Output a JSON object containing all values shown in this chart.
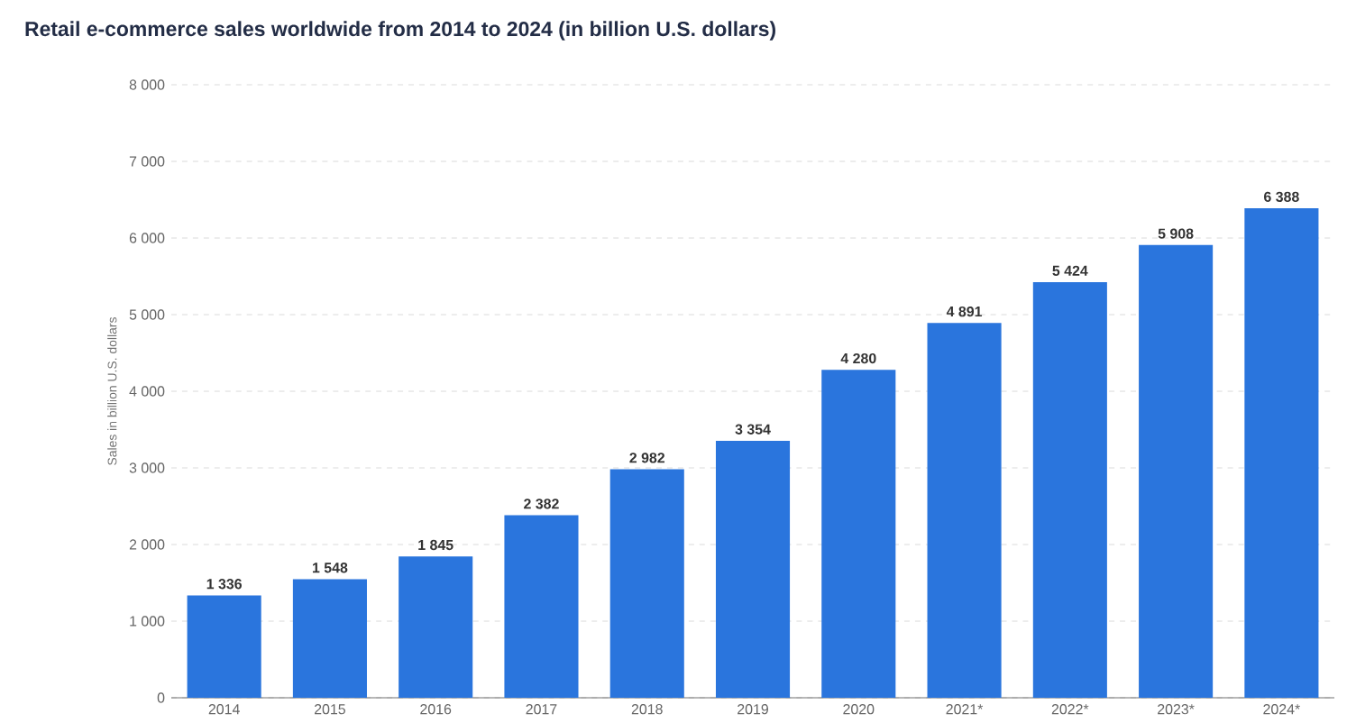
{
  "chart_data": {
    "type": "bar",
    "title": "Retail e-commerce sales worldwide from 2014 to 2024 (in billion U.S. dollars)",
    "ylabel": "Sales in billion U.S. dollars",
    "categories": [
      "2014",
      "2015",
      "2016",
      "2017",
      "2018",
      "2019",
      "2020",
      "2021*",
      "2022*",
      "2023*",
      "2024*"
    ],
    "values": [
      1336,
      1548,
      1845,
      2382,
      2982,
      3354,
      4280,
      4891,
      5424,
      5908,
      6388
    ],
    "value_labels": [
      "1 336",
      "1 548",
      "1 845",
      "2 382",
      "2 982",
      "3 354",
      "4 280",
      "4 891",
      "5 424",
      "5 908",
      "6 388"
    ],
    "color": "#2a75dd",
    "ylim": [
      0,
      8000
    ],
    "yticks": [
      {
        "value": 0,
        "label": "0"
      },
      {
        "value": 1000,
        "label": "1 000"
      },
      {
        "value": 2000,
        "label": "2 000"
      },
      {
        "value": 3000,
        "label": "3 000"
      },
      {
        "value": 4000,
        "label": "4 000"
      },
      {
        "value": 5000,
        "label": "5 000"
      },
      {
        "value": 6000,
        "label": "6 000"
      },
      {
        "value": 7000,
        "label": "7 000"
      },
      {
        "value": 8000,
        "label": "8 000"
      }
    ],
    "grid": "y"
  }
}
